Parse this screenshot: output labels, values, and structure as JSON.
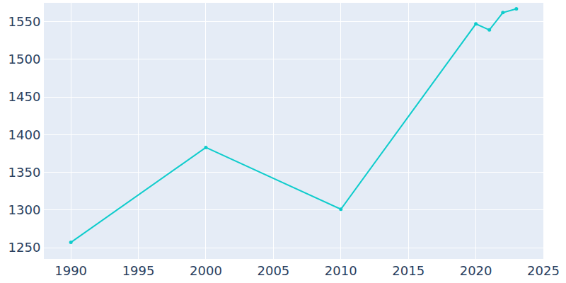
{
  "chart_data": {
    "type": "line",
    "x": [
      1990,
      2000,
      2010,
      2020,
      2021,
      2022,
      2023
    ],
    "values": [
      1257,
      1383,
      1301,
      1547,
      1539,
      1562,
      1567
    ],
    "color": "#0fcccc",
    "marker": "circle",
    "xlim": [
      1988,
      2025
    ],
    "xticks": [
      1990,
      1995,
      2000,
      2005,
      2010,
      2015,
      2020,
      2025
    ],
    "ylim": [
      1235,
      1575
    ],
    "yticks": [
      1250,
      1300,
      1350,
      1400,
      1450,
      1500,
      1550
    ],
    "grid": true
  }
}
